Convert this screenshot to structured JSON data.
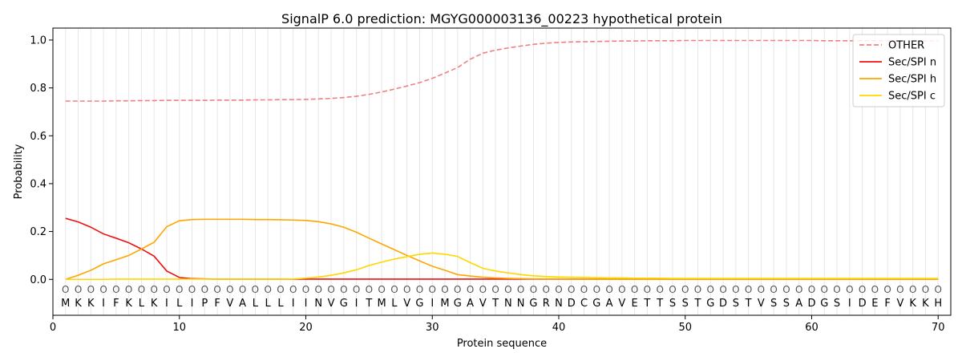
{
  "chart_data": {
    "type": "line",
    "title": "SignalP 6.0 prediction: MGYG000003136_00223 hypothetical protein",
    "xlabel": "Protein sequence",
    "ylabel": "Probability",
    "xlim": [
      0,
      71
    ],
    "ylim": [
      -0.15,
      1.05
    ],
    "xticks": [
      "0",
      "10",
      "20",
      "30",
      "40",
      "50",
      "60",
      "70"
    ],
    "yticks": [
      "0.0",
      "0.2",
      "0.4",
      "0.6",
      "0.8",
      "1.0"
    ],
    "grid": "vertical lines at every residue",
    "legend_position": "top-right",
    "sequence": [
      "M",
      "K",
      "K",
      "I",
      "F",
      "K",
      "L",
      "K",
      "I",
      "L",
      "I",
      "P",
      "F",
      "V",
      "A",
      "L",
      "L",
      "L",
      "I",
      "I",
      "N",
      "V",
      "G",
      "I",
      "T",
      "M",
      "L",
      "V",
      "G",
      "I",
      "M",
      "G",
      "A",
      "V",
      "T",
      "N",
      "N",
      "G",
      "R",
      "N",
      "D",
      "C",
      "G",
      "A",
      "V",
      "E",
      "T",
      "T",
      "S",
      "S",
      "T",
      "G",
      "D",
      "S",
      "T",
      "V",
      "S",
      "S",
      "A",
      "D",
      "G",
      "S",
      "I",
      "D",
      "E",
      "F",
      "V",
      "K",
      "K",
      "H"
    ],
    "annotation_marker": "O",
    "series": [
      {
        "name": "OTHER",
        "color": "#f08080",
        "dash": true,
        "values": [
          0.745,
          0.745,
          0.745,
          0.745,
          0.746,
          0.746,
          0.747,
          0.747,
          0.748,
          0.748,
          0.748,
          0.748,
          0.749,
          0.749,
          0.749,
          0.75,
          0.75,
          0.751,
          0.751,
          0.752,
          0.754,
          0.756,
          0.76,
          0.765,
          0.773,
          0.783,
          0.795,
          0.808,
          0.822,
          0.84,
          0.862,
          0.885,
          0.92,
          0.945,
          0.958,
          0.967,
          0.975,
          0.982,
          0.987,
          0.99,
          0.992,
          0.993,
          0.994,
          0.995,
          0.996,
          0.996,
          0.997,
          0.997,
          0.997,
          0.998,
          0.998,
          0.998,
          0.998,
          0.998,
          0.998,
          0.998,
          0.998,
          0.998,
          0.998,
          0.998,
          0.997,
          0.997,
          0.997,
          0.997,
          0.997,
          0.997,
          0.997,
          0.997,
          0.997,
          0.997
        ]
      },
      {
        "name": "Sec/SPI n",
        "color": "#ee1111",
        "dash": false,
        "values": [
          0.255,
          0.24,
          0.218,
          0.19,
          0.172,
          0.153,
          0.127,
          0.097,
          0.035,
          0.008,
          0.003,
          0.002,
          0.001,
          0.001,
          0.001,
          0.001,
          0.001,
          0.001,
          0.001,
          0.001,
          0.001,
          0.001,
          0.001,
          0.001,
          0.001,
          0.001,
          0.001,
          0.001,
          0.001,
          0.001,
          0.001,
          0.001,
          0.001,
          0.001,
          0.001,
          0.001,
          0.001,
          0.001,
          0.001,
          0.001,
          0.001,
          0.001,
          0.001,
          0.001,
          0.001,
          0.001,
          0.001,
          0.001,
          0.001,
          0.001,
          0.001,
          0.001,
          0.001,
          0.001,
          0.001,
          0.001,
          0.001,
          0.001,
          0.001,
          0.001,
          0.001,
          0.001,
          0.001,
          0.001,
          0.001,
          0.001,
          0.001,
          0.001,
          0.001,
          0.001
        ]
      },
      {
        "name": "Sec/SPI h",
        "color": "#ffa500",
        "dash": false,
        "values": [
          0.0,
          0.017,
          0.038,
          0.065,
          0.082,
          0.1,
          0.127,
          0.155,
          0.22,
          0.245,
          0.25,
          0.251,
          0.251,
          0.251,
          0.251,
          0.25,
          0.25,
          0.249,
          0.248,
          0.246,
          0.241,
          0.232,
          0.218,
          0.197,
          0.172,
          0.148,
          0.124,
          0.1,
          0.077,
          0.055,
          0.038,
          0.02,
          0.014,
          0.009,
          0.006,
          0.004,
          0.003,
          0.002,
          0.002,
          0.002,
          0.001,
          0.001,
          0.001,
          0.001,
          0.001,
          0.001,
          0.001,
          0.001,
          0.001,
          0.001,
          0.001,
          0.001,
          0.001,
          0.001,
          0.001,
          0.001,
          0.001,
          0.001,
          0.001,
          0.001,
          0.001,
          0.001,
          0.001,
          0.001,
          0.001,
          0.001,
          0.001,
          0.001,
          0.001,
          0.001
        ]
      },
      {
        "name": "Sec/SPI c",
        "color": "#ffd700",
        "dash": false,
        "values": [
          0.0,
          0.0,
          0.0,
          0.0,
          0.001,
          0.001,
          0.001,
          0.001,
          0.001,
          0.001,
          0.001,
          0.001,
          0.001,
          0.001,
          0.001,
          0.001,
          0.001,
          0.001,
          0.002,
          0.005,
          0.01,
          0.017,
          0.027,
          0.04,
          0.058,
          0.072,
          0.085,
          0.095,
          0.105,
          0.11,
          0.105,
          0.096,
          0.07,
          0.046,
          0.035,
          0.027,
          0.02,
          0.015,
          0.012,
          0.01,
          0.009,
          0.008,
          0.007,
          0.006,
          0.006,
          0.005,
          0.005,
          0.005,
          0.004,
          0.004,
          0.004,
          0.004,
          0.004,
          0.004,
          0.004,
          0.004,
          0.004,
          0.004,
          0.004,
          0.004,
          0.004,
          0.004,
          0.004,
          0.004,
          0.004,
          0.004,
          0.004,
          0.004,
          0.004,
          0.004
        ]
      }
    ]
  }
}
